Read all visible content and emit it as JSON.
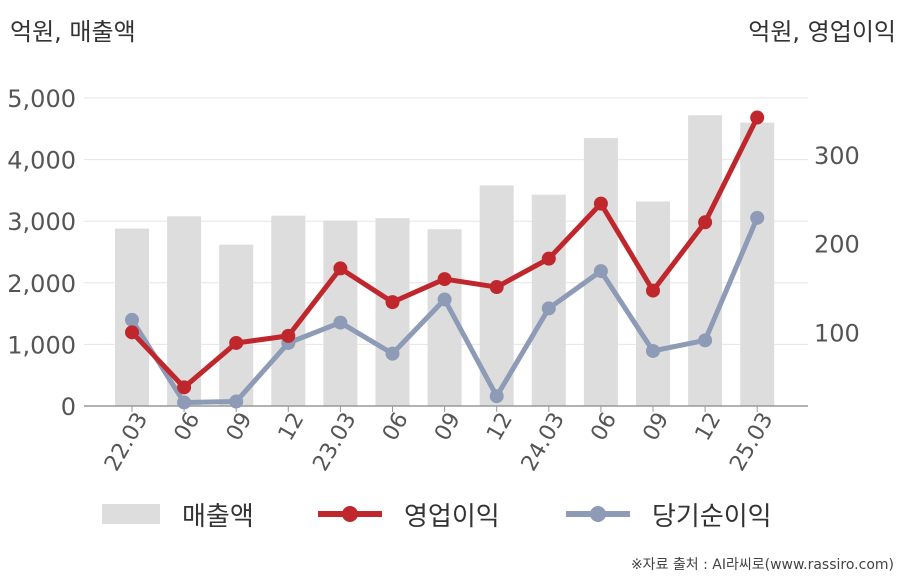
{
  "units": {
    "left": "억원, 매출액",
    "right": "억원, 영업이익"
  },
  "source": "※자료 출처 : AI라씨로(www.rassiro.com)",
  "colors": {
    "revenue": "#dddddd",
    "operating_profit": "#c0272d",
    "net_income": "#8e9bb6",
    "grid": "#e6e6e6",
    "axis": "#999999"
  },
  "legend": [
    {
      "key": "revenue",
      "label": "매출액"
    },
    {
      "key": "operating_profit",
      "label": "영업이익"
    },
    {
      "key": "net_income",
      "label": "당기순이익"
    }
  ],
  "chart_data": {
    "type": "bar",
    "title": "",
    "categories": [
      "22.03",
      "06",
      "09",
      "12",
      "23.03",
      "06",
      "09",
      "12",
      "24.03",
      "06",
      "09",
      "12",
      "25.03"
    ],
    "left_axis": {
      "label": "억원, 매출액",
      "ylim": [
        0,
        5000
      ],
      "ticks": [
        0,
        1000,
        2000,
        3000,
        4000,
        5000
      ],
      "tick_labels": [
        "0",
        "1,000",
        "2,000",
        "3,000",
        "4,000",
        "5,000"
      ]
    },
    "right_axis": {
      "label": "억원, 영업이익",
      "ylim": [
        17,
        364
      ],
      "ticks": [
        100,
        200,
        300
      ],
      "tick_labels": [
        "100",
        "200",
        "300"
      ]
    },
    "grid": true,
    "legend_position": "bottom",
    "series": [
      {
        "name": "매출액",
        "type": "bar",
        "axis": "left",
        "values": [
          2880,
          3080,
          2620,
          3090,
          3010,
          3050,
          2870,
          3580,
          3430,
          4350,
          3320,
          4720,
          4600
        ]
      },
      {
        "name": "영업이익",
        "type": "line",
        "axis": "right",
        "values": [
          100,
          38,
          88,
          96,
          172,
          134,
          160,
          151,
          183,
          245,
          147,
          224,
          342
        ]
      },
      {
        "name": "당기순이익",
        "type": "line",
        "axis": "right",
        "values": [
          114,
          21,
          22,
          88,
          111,
          76,
          137,
          28,
          127,
          169,
          79,
          91,
          229
        ]
      }
    ]
  }
}
